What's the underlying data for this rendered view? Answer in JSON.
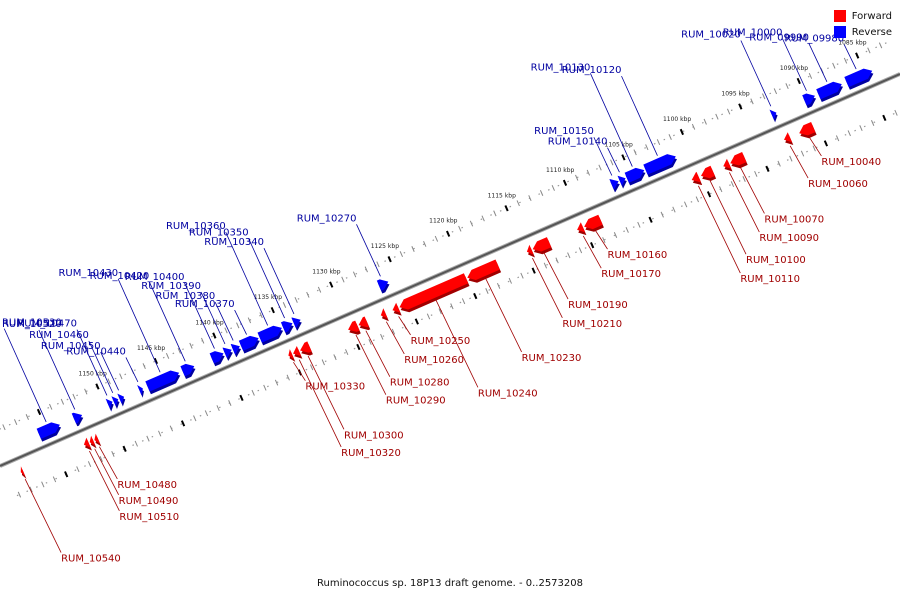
{
  "caption": "Ruminococcus sp. 18P13 draft genome. - 0..2573208",
  "colors": {
    "forward": "#ff0000",
    "reverse": "#0000ff",
    "forward_dark": "#a00000",
    "reverse_dark": "#0000a0",
    "backbone": "#555555"
  },
  "legend": [
    {
      "label": "Forward",
      "color": "#ff0000"
    },
    {
      "label": "Reverse",
      "color": "#0000ff"
    }
  ],
  "axis": {
    "ticks": [
      {
        "label": "1085 kbp",
        "pos": 1085
      },
      {
        "label": "1090 kbp",
        "pos": 1090
      },
      {
        "label": "1095 kbp",
        "pos": 1095
      },
      {
        "label": "1100 kbp",
        "pos": 1100
      },
      {
        "label": "1105 kbp",
        "pos": 1105
      },
      {
        "label": "1110 kbp",
        "pos": 1110
      },
      {
        "label": "1115 kbp",
        "pos": 1115
      },
      {
        "label": "1120 kbp",
        "pos": 1120
      },
      {
        "label": "1125 kbp",
        "pos": 1125
      },
      {
        "label": "1130 kbp",
        "pos": 1130
      },
      {
        "label": "1135 kbp",
        "pos": 1135
      },
      {
        "label": "1140 kbp",
        "pos": 1140
      },
      {
        "label": "1145 kbp",
        "pos": 1145
      },
      {
        "label": "1150 kbp",
        "pos": 1150
      }
    ]
  },
  "genes": [
    {
      "name": "RUM_09980",
      "strand": "reverse",
      "start": 1084.4,
      "end": 1086.6
    },
    {
      "name": "RUM_09990",
      "strand": "reverse",
      "start": 1087.0,
      "end": 1089.0
    },
    {
      "name": "RUM_10000",
      "strand": "reverse",
      "start": 1089.3,
      "end": 1090.2
    },
    {
      "name": "RUM_10020",
      "strand": "reverse",
      "start": 1092.6,
      "end": 1093.0
    },
    {
      "name": "RUM_10040",
      "strand": "forward",
      "start": 1090.4,
      "end": 1091.6
    },
    {
      "name": "RUM_10060",
      "strand": "forward",
      "start": 1092.4,
      "end": 1092.9
    },
    {
      "name": "RUM_10070",
      "strand": "forward",
      "start": 1096.3,
      "end": 1097.5
    },
    {
      "name": "RUM_10090",
      "strand": "forward",
      "start": 1097.6,
      "end": 1098.1
    },
    {
      "name": "RUM_10100",
      "strand": "forward",
      "start": 1099.0,
      "end": 1100.0
    },
    {
      "name": "RUM_10110",
      "strand": "forward",
      "start": 1100.2,
      "end": 1100.8
    },
    {
      "name": "RUM_10120",
      "strand": "reverse",
      "start": 1101.2,
      "end": 1103.8
    },
    {
      "name": "RUM_10130",
      "strand": "reverse",
      "start": 1103.9,
      "end": 1105.4
    },
    {
      "name": "RUM_10140",
      "strand": "reverse",
      "start": 1105.5,
      "end": 1106.0
    },
    {
      "name": "RUM_10150",
      "strand": "reverse",
      "start": 1106.1,
      "end": 1106.7
    },
    {
      "name": "RUM_10160",
      "strand": "forward",
      "start": 1108.6,
      "end": 1110.0
    },
    {
      "name": "RUM_10170",
      "strand": "forward",
      "start": 1110.1,
      "end": 1110.6
    },
    {
      "name": "RUM_10190",
      "strand": "forward",
      "start": 1113.0,
      "end": 1114.4
    },
    {
      "name": "RUM_10210",
      "strand": "forward",
      "start": 1114.5,
      "end": 1114.9
    },
    {
      "name": "RUM_10230",
      "strand": "forward",
      "start": 1117.4,
      "end": 1120.0
    },
    {
      "name": "RUM_10240",
      "strand": "forward",
      "start": 1120.1,
      "end": 1125.8
    },
    {
      "name": "RUM_10250",
      "strand": "forward",
      "start": 1125.9,
      "end": 1126.4
    },
    {
      "name": "RUM_10260",
      "strand": "forward",
      "start": 1127.0,
      "end": 1127.4
    },
    {
      "name": "RUM_10270",
      "strand": "reverse",
      "start": 1125.8,
      "end": 1126.6
    },
    {
      "name": "RUM_10280",
      "strand": "forward",
      "start": 1128.6,
      "end": 1129.3
    },
    {
      "name": "RUM_10290",
      "strand": "forward",
      "start": 1129.4,
      "end": 1130.2
    },
    {
      "name": "RUM_10300",
      "strand": "forward",
      "start": 1133.5,
      "end": 1134.3
    },
    {
      "name": "RUM_10320",
      "strand": "forward",
      "start": 1134.4,
      "end": 1134.9
    },
    {
      "name": "RUM_10330",
      "strand": "forward",
      "start": 1135.0,
      "end": 1135.3
    },
    {
      "name": "RUM_10340",
      "strand": "reverse",
      "start": 1133.3,
      "end": 1133.9
    },
    {
      "name": "RUM_10350",
      "strand": "reverse",
      "start": 1134.0,
      "end": 1134.8
    },
    {
      "name": "RUM_10360",
      "strand": "reverse",
      "start": 1134.9,
      "end": 1136.8
    },
    {
      "name": "RUM_10370",
      "strand": "reverse",
      "start": 1136.9,
      "end": 1138.4
    },
    {
      "name": "RUM_10380",
      "strand": "reverse",
      "start": 1138.5,
      "end": 1139.1
    },
    {
      "name": "RUM_10390",
      "strand": "reverse",
      "start": 1139.2,
      "end": 1139.8
    },
    {
      "name": "RUM_10400",
      "strand": "reverse",
      "start": 1139.9,
      "end": 1140.9
    },
    {
      "name": "RUM_10420",
      "strand": "reverse",
      "start": 1142.4,
      "end": 1143.4
    },
    {
      "name": "RUM_10430",
      "strand": "reverse",
      "start": 1143.7,
      "end": 1146.4
    },
    {
      "name": "RUM_10440",
      "strand": "reverse",
      "start": 1146.8,
      "end": 1147.1
    },
    {
      "name": "RUM_10450",
      "strand": "reverse",
      "start": 1148.4,
      "end": 1148.8
    },
    {
      "name": "RUM_10460",
      "strand": "reverse",
      "start": 1148.9,
      "end": 1149.3
    },
    {
      "name": "RUM_10470",
      "strand": "reverse",
      "start": 1149.4,
      "end": 1149.8
    },
    {
      "name": "RUM_10480",
      "strand": "forward",
      "start": 1151.6,
      "end": 1151.9
    },
    {
      "name": "RUM_10490",
      "strand": "forward",
      "start": 1152.0,
      "end": 1152.3
    },
    {
      "name": "RUM_10510",
      "strand": "forward",
      "start": 1152.4,
      "end": 1152.8
    },
    {
      "name": "RUM_10520",
      "strand": "reverse",
      "start": 1152.0,
      "end": 1152.7
    },
    {
      "name": "RUM_10530",
      "strand": "reverse",
      "start": 1153.9,
      "end": 1155.7
    },
    {
      "name": "RUM_10540",
      "strand": "forward",
      "start": 1158.0,
      "end": 1158.2
    }
  ]
}
